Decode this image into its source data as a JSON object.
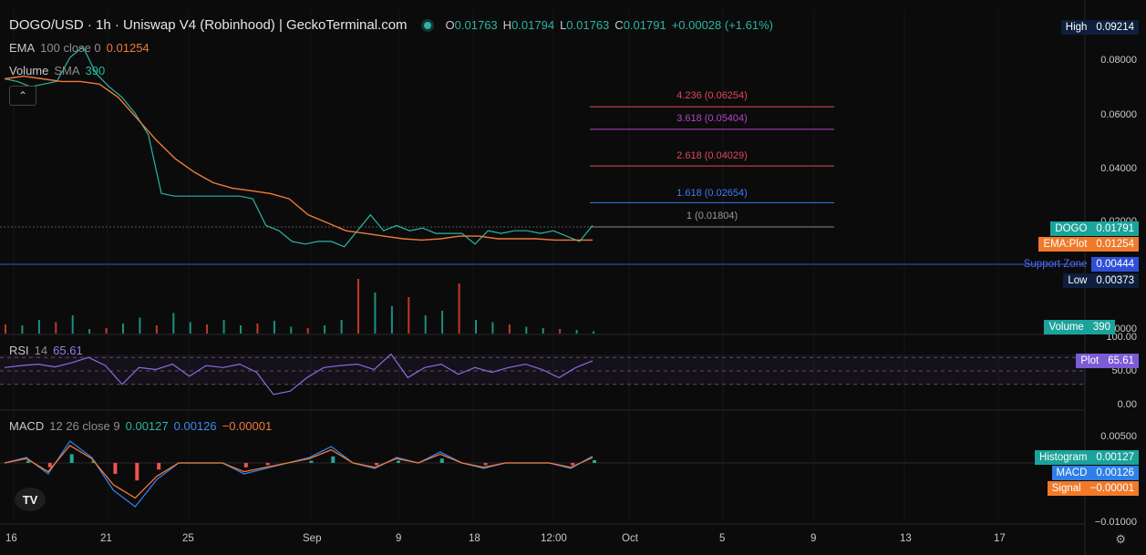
{
  "header": {
    "title": "DOGO/USD · 1h · Uniswap V4 (Robinhood) | GeckoTerminal.com",
    "o_label": "O",
    "o": "0.01763",
    "h_label": "H",
    "h": "0.01794",
    "l_label": "L",
    "l": "0.01763",
    "c_label": "C",
    "c": "0.01791",
    "change": "+0.00028 (+1.61%)"
  },
  "legends": {
    "ema": {
      "name": "EMA",
      "params": "100 close 0",
      "value": "0.01254"
    },
    "volume": {
      "name": "Volume",
      "params": "SMA",
      "value": "390"
    },
    "rsi": {
      "name": "RSI",
      "params": "14",
      "value": "65.61"
    },
    "macd": {
      "name": "MACD",
      "params": "12 26 close 9",
      "v1": "0.00127",
      "v2": "0.00126",
      "v3": "−0.00001"
    }
  },
  "collapse_icon": "chevron-up-icon",
  "price_axis": {
    "ticks": [
      "0.08000",
      "0.06000",
      "0.04000",
      "0.02000",
      "0.00000"
    ],
    "badges": {
      "high": {
        "k": "High",
        "v": "0.09214"
      },
      "dogo": {
        "k": "DOGO",
        "v": "0.01791"
      },
      "ema": {
        "k": "EMA:Plot",
        "v": "0.01254"
      },
      "support": {
        "k": "Support Zone",
        "v": "0.00444"
      },
      "low": {
        "k": "Low",
        "v": "0.00373"
      },
      "volume": {
        "k": "Volume",
        "v": "390"
      },
      "rsi": {
        "k": "Plot",
        "v": "65.61"
      },
      "hist": {
        "k": "Histogram",
        "v": "0.00127"
      },
      "macd": {
        "k": "MACD",
        "v": "0.00126"
      },
      "signal": {
        "k": "Signal",
        "v": "−0.00001"
      }
    }
  },
  "rsi_axis": [
    "100.00",
    "50.00",
    "0.00"
  ],
  "macd_axis": [
    "0.00500",
    "−0.01000"
  ],
  "fib_levels": [
    {
      "label": "4.236 (0.06254)",
      "value": 0.06254,
      "color": "#e0485a"
    },
    {
      "label": "3.618 (0.05404)",
      "value": 0.05404,
      "color": "#b545c8"
    },
    {
      "label": "2.618 (0.04029)",
      "value": 0.04029,
      "color": "#e0485a"
    },
    {
      "label": "1.618 (0.02654)",
      "value": 0.02654,
      "color": "#3f7bf0"
    },
    {
      "label": "1 (0.01804)",
      "value": 0.01804,
      "color": "#8a8a8a"
    }
  ],
  "time_axis": [
    "16",
    "21",
    "25",
    "Sep",
    "9",
    "18",
    "12:00",
    "Oct",
    "5",
    "9",
    "13",
    "17"
  ],
  "chart_data": {
    "type": "line",
    "price_series": [
      0.073,
      0.072,
      0.07,
      0.071,
      0.072,
      0.081,
      0.085,
      0.075,
      0.07,
      0.066,
      0.06,
      0.052,
      0.03,
      0.029,
      0.029,
      0.029,
      0.029,
      0.029,
      0.029,
      0.028,
      0.018,
      0.016,
      0.012,
      0.011,
      0.012,
      0.012,
      0.01,
      0.016,
      0.022,
      0.016,
      0.018,
      0.016,
      0.017,
      0.015,
      0.015,
      0.015,
      0.011,
      0.016,
      0.015,
      0.016,
      0.016,
      0.015,
      0.016,
      0.014,
      0.012,
      0.018
    ],
    "ema_series": [
      0.073,
      0.074,
      0.073,
      0.072,
      0.072,
      0.071,
      0.066,
      0.058,
      0.05,
      0.043,
      0.038,
      0.034,
      0.032,
      0.031,
      0.03,
      0.028,
      0.022,
      0.019,
      0.016,
      0.015,
      0.014,
      0.013,
      0.0125,
      0.013,
      0.014,
      0.014,
      0.013,
      0.013,
      0.013,
      0.0125,
      0.0125,
      0.0125
    ],
    "support_zone": 0.00444,
    "rsi_series": [
      55,
      58,
      60,
      56,
      62,
      70,
      58,
      30,
      55,
      52,
      60,
      42,
      58,
      55,
      60,
      48,
      15,
      20,
      40,
      55,
      58,
      60,
      52,
      75,
      40,
      55,
      60,
      45,
      55,
      48,
      55,
      60,
      52,
      40,
      55,
      65
    ],
    "rsi_bands": [
      70,
      50,
      30
    ],
    "macd_series": [
      0.0,
      0.001,
      -0.002,
      0.004,
      0.001,
      -0.005,
      -0.008,
      -0.003,
      0.0,
      0.0,
      0.0,
      -0.002,
      -0.001,
      0.0,
      0.001,
      0.003,
      0.0,
      -0.001,
      0.001,
      0.0,
      0.002,
      0.0,
      -0.001,
      0.0,
      0.0,
      0.0,
      -0.001,
      0.00126
    ],
    "volume_series": [
      20,
      18,
      30,
      25,
      40,
      10,
      12,
      22,
      35,
      18,
      45,
      25,
      20,
      30,
      18,
      22,
      28,
      15,
      12,
      18,
      30,
      120,
      90,
      60,
      80,
      40,
      50,
      110,
      30,
      25,
      20,
      15,
      12,
      10,
      8,
      5
    ]
  }
}
